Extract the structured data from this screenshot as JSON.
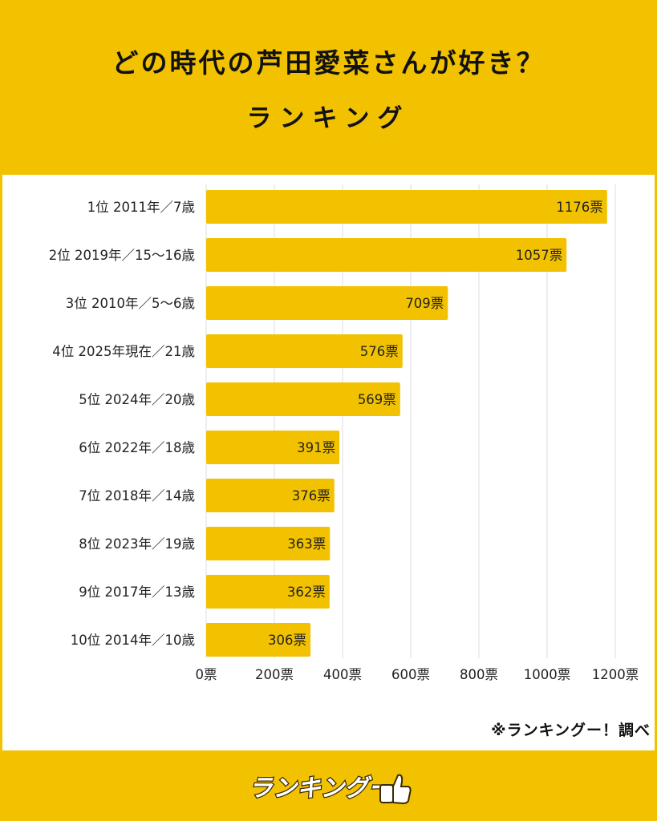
{
  "header": {
    "title_line1": "どの時代の芦田愛菜さんが好き？",
    "title_line2": "ランキング"
  },
  "source_note": "※ランキングー！調べ",
  "logo": {
    "text": "ランキングー!"
  },
  "colors": {
    "background": "#F2C200",
    "bar": "#F2C200",
    "panel": "#FFFFFF",
    "grid": "#DDDDDD",
    "text": "#222222"
  },
  "chart_data": {
    "type": "bar",
    "orientation": "horizontal",
    "categories": [
      "1位 2011年／7歳",
      "2位 2019年／15〜16歳",
      "3位 2010年／5〜6歳",
      "4位 2025年現在／21歳",
      "5位 2024年／20歳",
      "6位 2022年／18歳",
      "7位 2018年／14歳",
      "8位 2023年／19歳",
      "9位 2017年／13歳",
      "10位 2014年／10歳"
    ],
    "values": [
      1176,
      1057,
      709,
      576,
      569,
      391,
      376,
      363,
      362,
      306
    ],
    "value_labels": [
      "1176票",
      "1057票",
      "709票",
      "576票",
      "569票",
      "391票",
      "376票",
      "363票",
      "362票",
      "306票"
    ],
    "xlim": [
      0,
      1200
    ],
    "ticks": [
      0,
      200,
      400,
      600,
      800,
      1000,
      1200
    ],
    "tick_labels": [
      "0票",
      "200票",
      "400票",
      "600票",
      "800票",
      "1000票",
      "1200票"
    ],
    "grid": true
  }
}
